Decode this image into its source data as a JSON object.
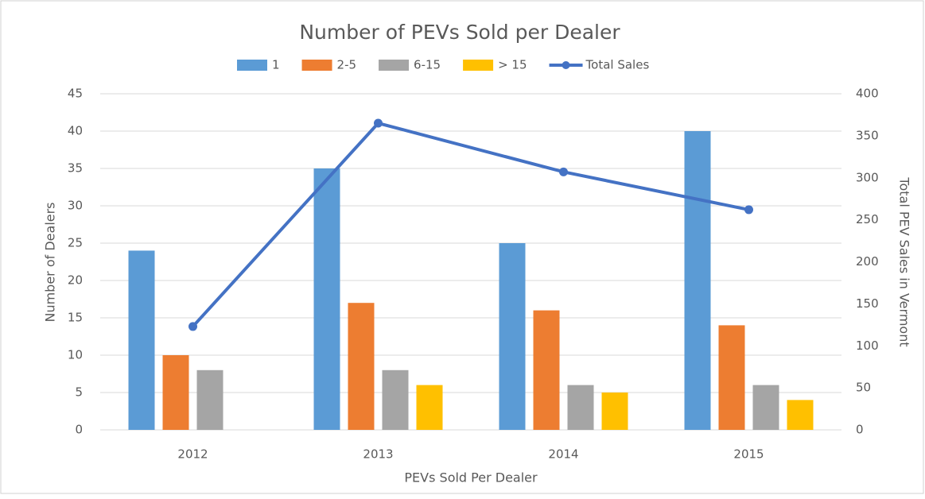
{
  "chart_data": {
    "type": "bar",
    "title": "Number of PEVs Sold per Dealer",
    "x_label": "PEVs Sold Per Dealer",
    "y_label": "Number  of Dealers",
    "y2_label": "Total PEV Sales in Vermont",
    "categories": [
      "2012",
      "2013",
      "2014",
      "2015"
    ],
    "series": [
      {
        "name": "1",
        "color": "#5b9bd5",
        "values": [
          24,
          35,
          25,
          40
        ]
      },
      {
        "name": "2-5",
        "color": "#ed7d31",
        "values": [
          10,
          17,
          16,
          14
        ]
      },
      {
        "name": "6-15",
        "color": "#a5a5a5",
        "values": [
          8,
          8,
          6,
          6
        ]
      },
      {
        "name": "> 15",
        "color": "#ffc000",
        "values": [
          null,
          6,
          5,
          4
        ]
      },
      {
        "name": "Total Sales",
        "color": "#4472c4",
        "type": "line",
        "axis": "y2",
        "values": [
          123,
          365,
          307,
          262
        ]
      }
    ],
    "ylim": [
      0,
      45
    ],
    "yticks": [
      0,
      5,
      10,
      15,
      20,
      25,
      30,
      35,
      40,
      45
    ],
    "y2lim": [
      0,
      400
    ],
    "y2ticks": [
      0,
      50,
      100,
      150,
      200,
      250,
      300,
      350,
      400
    ],
    "grid": true,
    "legend": "top"
  }
}
